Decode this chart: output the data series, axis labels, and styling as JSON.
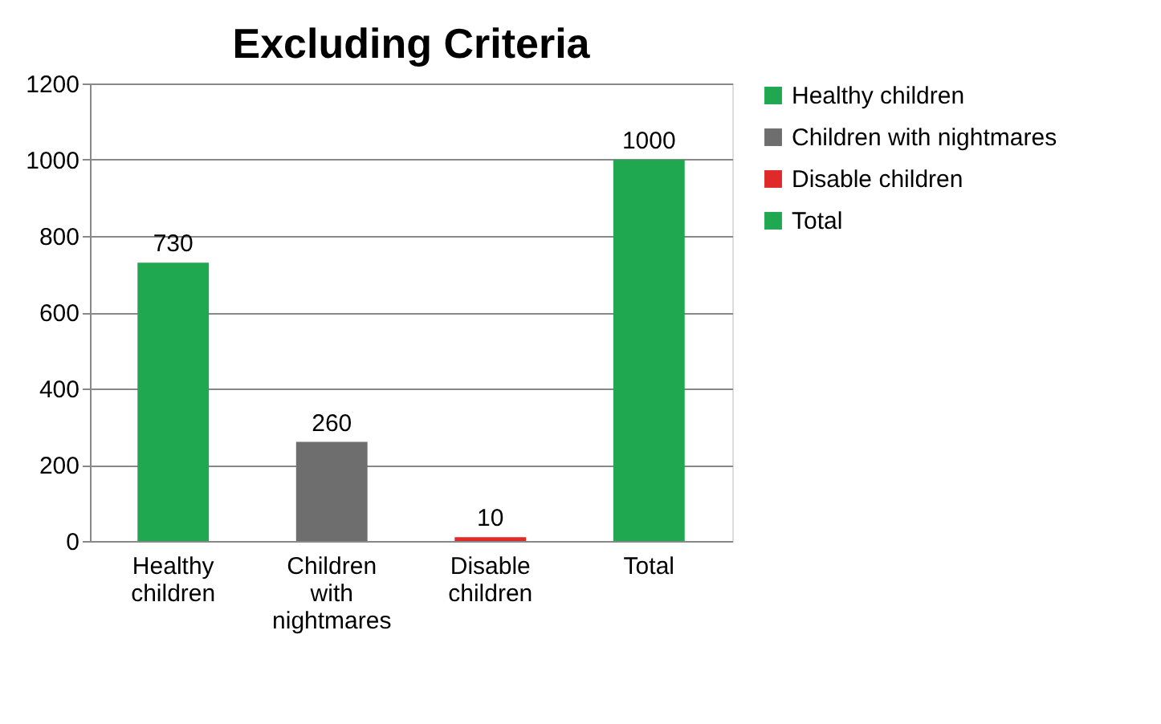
{
  "chart_data": {
    "type": "bar",
    "title": "Excluding Criteria",
    "categories": [
      "Healthy children",
      "Children with nightmares",
      "Disable children",
      "Total"
    ],
    "series": [
      {
        "name": "Healthy children",
        "color": "#1fa84f",
        "values": [
          730,
          null,
          null,
          null
        ]
      },
      {
        "name": "Children with nightmares",
        "color": "#6e6e6e",
        "values": [
          null,
          260,
          null,
          null
        ]
      },
      {
        "name": "Disable children",
        "color": "#e02a2a",
        "values": [
          null,
          null,
          10,
          null
        ]
      },
      {
        "name": "Total",
        "color": "#1fa84f",
        "values": [
          null,
          null,
          null,
          1000
        ]
      }
    ],
    "ylim": [
      0,
      1200
    ],
    "yticks": [
      0,
      200,
      400,
      600,
      800,
      1000,
      1200
    ],
    "grid": "y",
    "legend": "right",
    "data_labels": true
  }
}
